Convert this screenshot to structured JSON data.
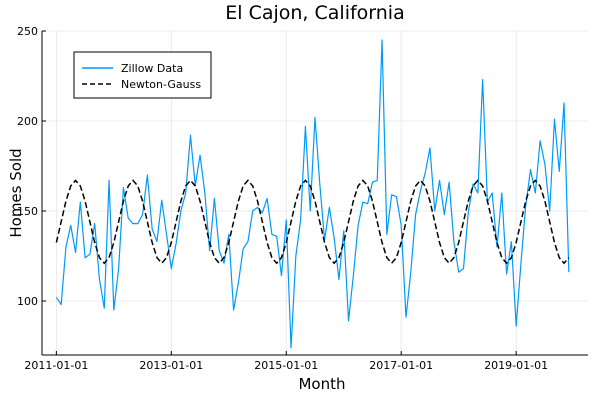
{
  "chart_data": {
    "type": "line",
    "title": "El Cajon, California",
    "xlabel": "Month",
    "ylabel": "Homes Sold",
    "xlim": [
      "2010-10-01",
      "2020-04-01"
    ],
    "ylim": [
      70,
      250
    ],
    "x_ticks": [
      "2011-01-01",
      "2013-01-01",
      "2015-01-01",
      "2017-01-01",
      "2019-01-01"
    ],
    "y_ticks": [
      100,
      150,
      200,
      250
    ],
    "grid": true,
    "legend_position": "top-left",
    "series": [
      {
        "name": "Zillow Data",
        "style": "solid",
        "color": "#009af9",
        "start": "2011-01",
        "values": [
          102,
          98,
          130,
          142,
          127,
          155,
          124,
          126,
          143,
          112,
          96,
          167,
          95,
          118,
          163,
          146,
          143,
          143,
          148,
          170,
          140,
          133,
          156,
          137,
          118,
          132,
          150,
          160,
          192,
          164,
          181,
          160,
          128,
          157,
          128,
          121,
          137,
          95,
          110,
          129,
          133,
          150,
          152,
          149,
          157,
          137,
          136,
          114,
          145,
          74,
          125,
          145,
          197,
          150,
          202,
          165,
          134,
          152,
          135,
          112,
          139,
          89,
          114,
          142,
          155,
          154,
          166,
          167,
          245,
          137,
          159,
          158,
          142,
          91,
          116,
          148,
          161,
          171,
          185,
          150,
          167,
          148,
          166,
          133,
          116,
          118,
          149,
          165,
          160,
          223,
          155,
          160,
          130,
          160,
          115,
          133,
          86,
          121,
          153,
          173,
          160,
          189,
          176,
          150,
          201,
          172,
          210,
          116
        ]
      },
      {
        "name": "Newton-Gauss",
        "style": "dashed",
        "color": "#000000",
        "start": "2011-01",
        "model": {
          "mean": 144,
          "amplitude": 23,
          "period_months": 12,
          "peak_month": 4
        }
      }
    ]
  }
}
